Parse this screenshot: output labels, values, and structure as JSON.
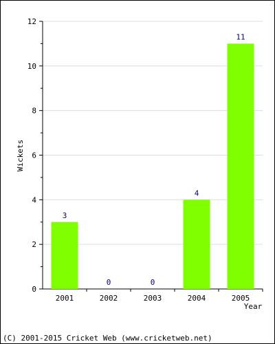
{
  "chart_data": {
    "type": "bar",
    "categories": [
      "2001",
      "2002",
      "2003",
      "2004",
      "2005"
    ],
    "values": [
      3,
      0,
      0,
      4,
      11
    ],
    "ylabel": "Wickets",
    "xlabel": "Year",
    "ylim": [
      0,
      12
    ],
    "y_ticks": [
      0,
      2,
      4,
      6,
      8,
      10,
      12
    ],
    "grid": true,
    "bar_color": "#80ff00",
    "label_color": "#000080"
  },
  "footer": {
    "credit": "(C) 2001-2015 Cricket Web (www.cricketweb.net)"
  }
}
